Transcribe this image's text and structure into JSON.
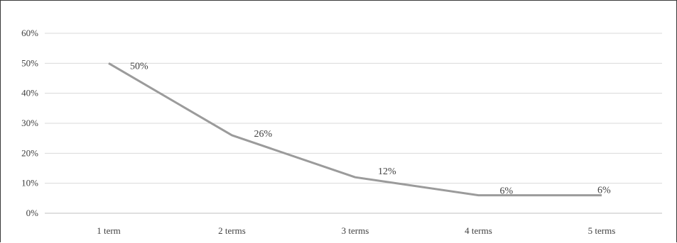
{
  "chart_data": {
    "type": "line",
    "title": "",
    "xlabel": "",
    "ylabel": "",
    "categories": [
      "1 term",
      "2 terms",
      "3 terms",
      "4 terms",
      "5 terms"
    ],
    "series": [
      {
        "values": [
          50,
          26,
          12,
          6,
          6
        ],
        "labels": [
          "50%",
          "26%",
          "12%",
          "6%",
          "6%"
        ],
        "color": "#9b9b9b"
      }
    ],
    "ylim": [
      0,
      60
    ],
    "yticks": [
      0,
      10,
      20,
      30,
      40,
      50,
      60
    ],
    "ytick_labels": [
      "0%",
      "10%",
      "20%",
      "30%",
      "40%",
      "50%",
      "60%"
    ],
    "grid": true,
    "legend": "none"
  }
}
